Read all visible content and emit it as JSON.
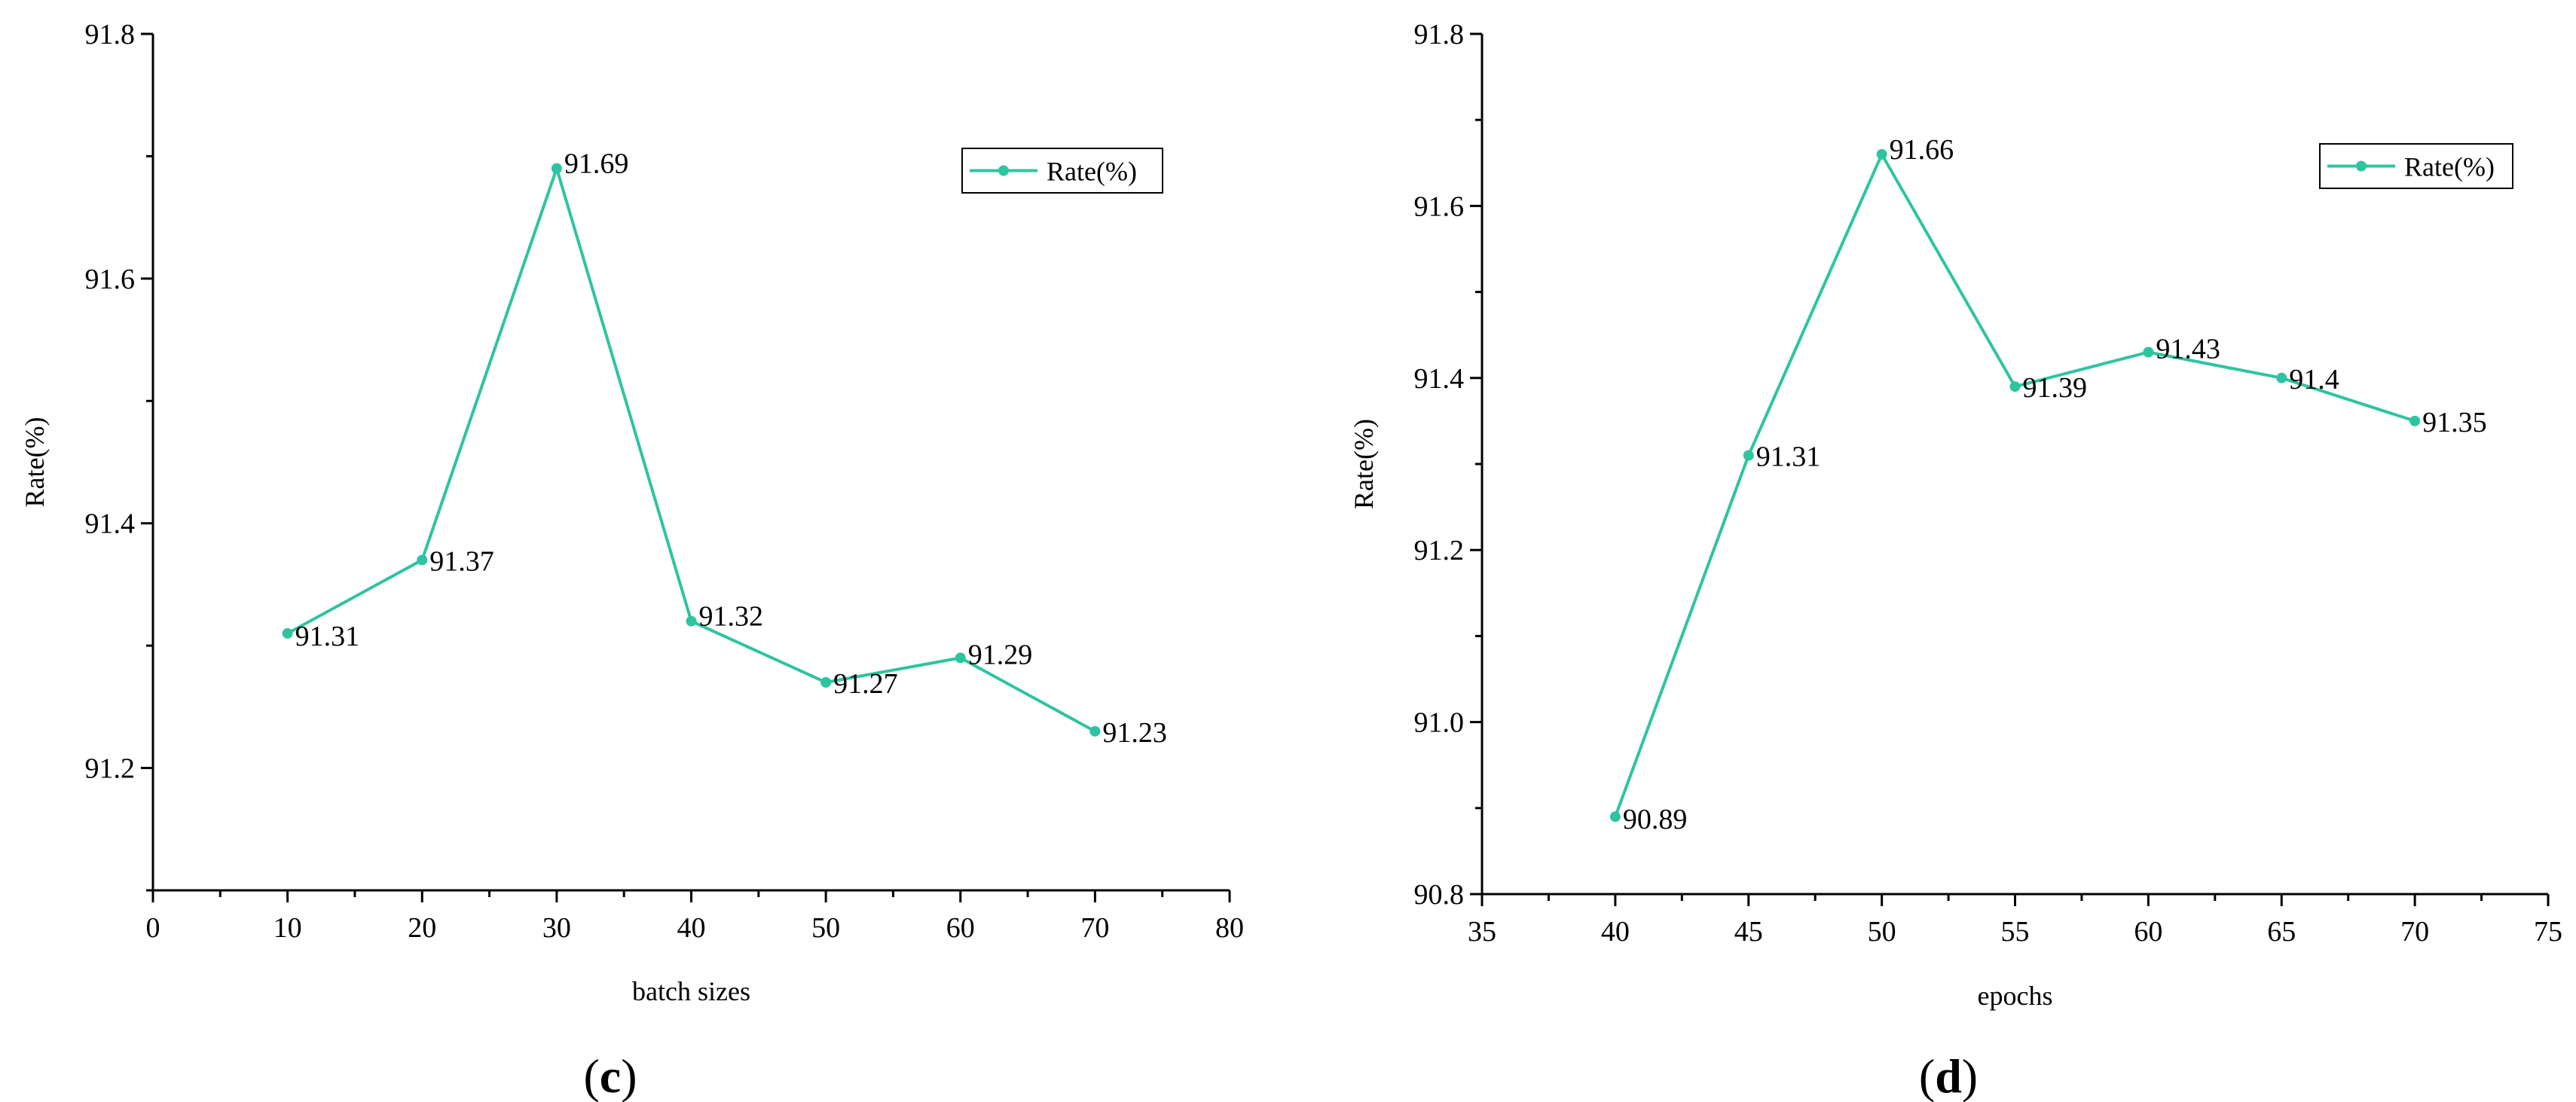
{
  "colors": {
    "series": "#2ec4a0",
    "axis": "#000000"
  },
  "panels": {
    "c": {
      "label_open": "(",
      "label_letter": "c",
      "label_close": ")"
    },
    "d": {
      "label_open": "(",
      "label_letter": "d",
      "label_close": ")"
    }
  },
  "chart_data": [
    {
      "id": "c",
      "type": "line",
      "xlabel": "batch sizes",
      "ylabel": "Rate(%)",
      "xlim": [
        0,
        80
      ],
      "ylim": [
        91.1,
        91.8
      ],
      "x_ticks": [
        0,
        10,
        20,
        30,
        40,
        50,
        60,
        70,
        80
      ],
      "x_tick_labels": [
        "0",
        "10",
        "20",
        "30",
        "40",
        "50",
        "60",
        "70",
        "80"
      ],
      "y_ticks": [
        91.2,
        91.4,
        91.6,
        91.8
      ],
      "y_tick_labels": [
        "91.2",
        "91.4",
        "91.6",
        "91.8"
      ],
      "grid": false,
      "legend_position": "top-right",
      "series": [
        {
          "name": "Rate(%)",
          "x": [
            10,
            20,
            30,
            40,
            50,
            60,
            70
          ],
          "values": [
            91.31,
            91.37,
            91.69,
            91.32,
            91.27,
            91.29,
            91.23
          ],
          "labels": [
            "91.31",
            "91.37",
            "91.69",
            "91.32",
            "91.27",
            "91.29",
            "91.23"
          ]
        }
      ]
    },
    {
      "id": "d",
      "type": "line",
      "xlabel": "epochs",
      "ylabel": "Rate(%)",
      "xlim": [
        35,
        75
      ],
      "ylim": [
        90.8,
        91.8
      ],
      "x_ticks": [
        35,
        40,
        45,
        50,
        55,
        60,
        65,
        70,
        75
      ],
      "x_tick_labels": [
        "35",
        "40",
        "45",
        "50",
        "55",
        "60",
        "65",
        "70",
        "75"
      ],
      "y_ticks": [
        90.8,
        91.0,
        91.2,
        91.4,
        91.6,
        91.8
      ],
      "y_tick_labels": [
        "90.8",
        "91.0",
        "91.2",
        "91.4",
        "91.6",
        "91.8"
      ],
      "grid": false,
      "legend_position": "top-right",
      "series": [
        {
          "name": "Rate(%)",
          "x": [
            40,
            45,
            50,
            55,
            60,
            65,
            70
          ],
          "values": [
            90.89,
            91.31,
            91.66,
            91.39,
            91.43,
            91.4,
            91.35
          ],
          "labels": [
            "90.89",
            "91.31",
            "91.66",
            "91.39",
            "91.43",
            "91.4",
            "91.35"
          ]
        }
      ]
    }
  ]
}
